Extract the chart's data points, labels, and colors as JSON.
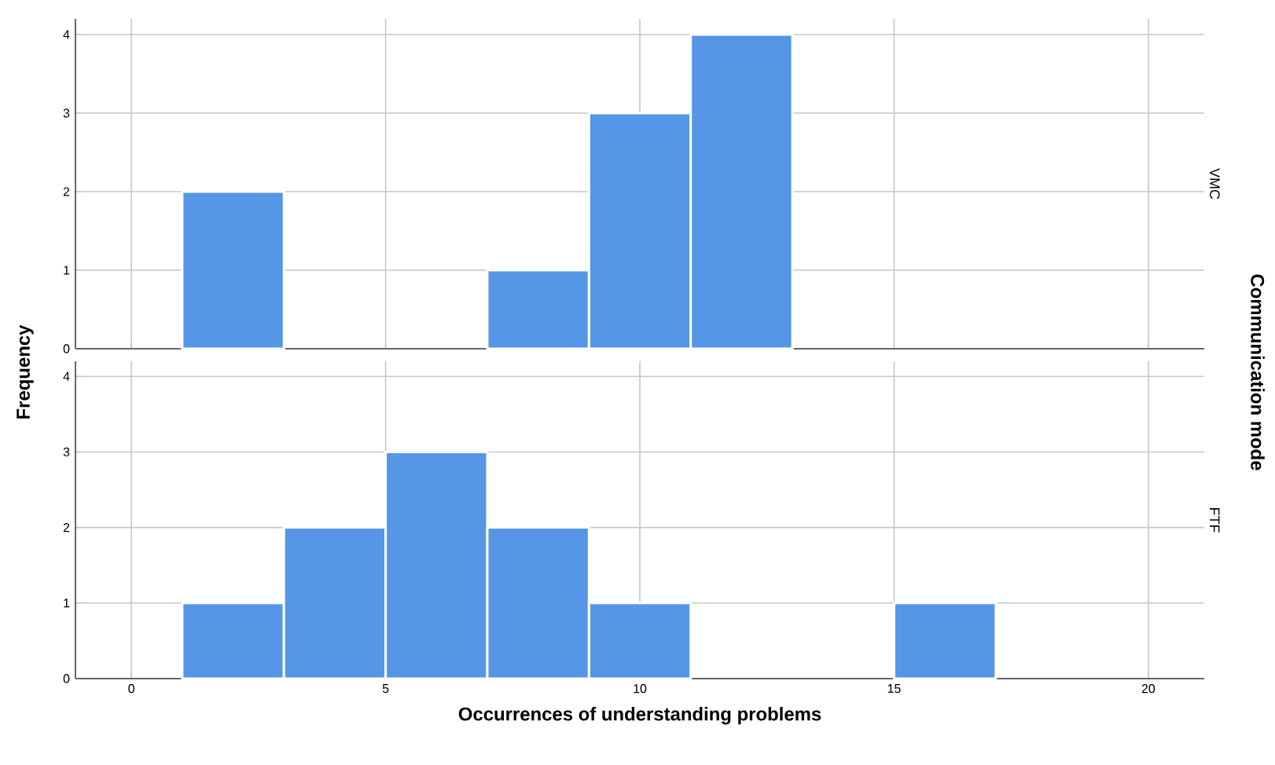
{
  "chart_data": [
    {
      "type": "histogram",
      "subtitle": "VMC",
      "ylabel": "Frequency",
      "y2label": "Communication mode",
      "color": "#5596e6",
      "bins": [
        1,
        3,
        5,
        7,
        9,
        11,
        13,
        15,
        17
      ],
      "values": [
        2,
        0,
        0,
        1,
        3,
        4,
        0,
        0
      ],
      "xlim": [
        -1.1,
        21.1
      ],
      "xticks": [
        0,
        5,
        10,
        15,
        20
      ],
      "ylim": [
        0,
        4.2
      ],
      "yticks": [
        0,
        1,
        2,
        3,
        4
      ],
      "grid": true,
      "tick_labels": "y"
    },
    {
      "type": "histogram",
      "subtitle": "FTF",
      "xlabel": "Occurrences of understanding problems",
      "color": "#5596e6",
      "bins": [
        1,
        3,
        5,
        7,
        9,
        11,
        13,
        15,
        17
      ],
      "values": [
        1,
        2,
        3,
        2,
        1,
        0,
        0,
        1
      ],
      "xlim": [
        -1.1,
        21.1
      ],
      "xticks": [
        0,
        5,
        10,
        15,
        20
      ],
      "ylim": [
        0,
        4.2
      ],
      "yticks": [
        0,
        1,
        2,
        3,
        4
      ],
      "grid": true
    }
  ]
}
